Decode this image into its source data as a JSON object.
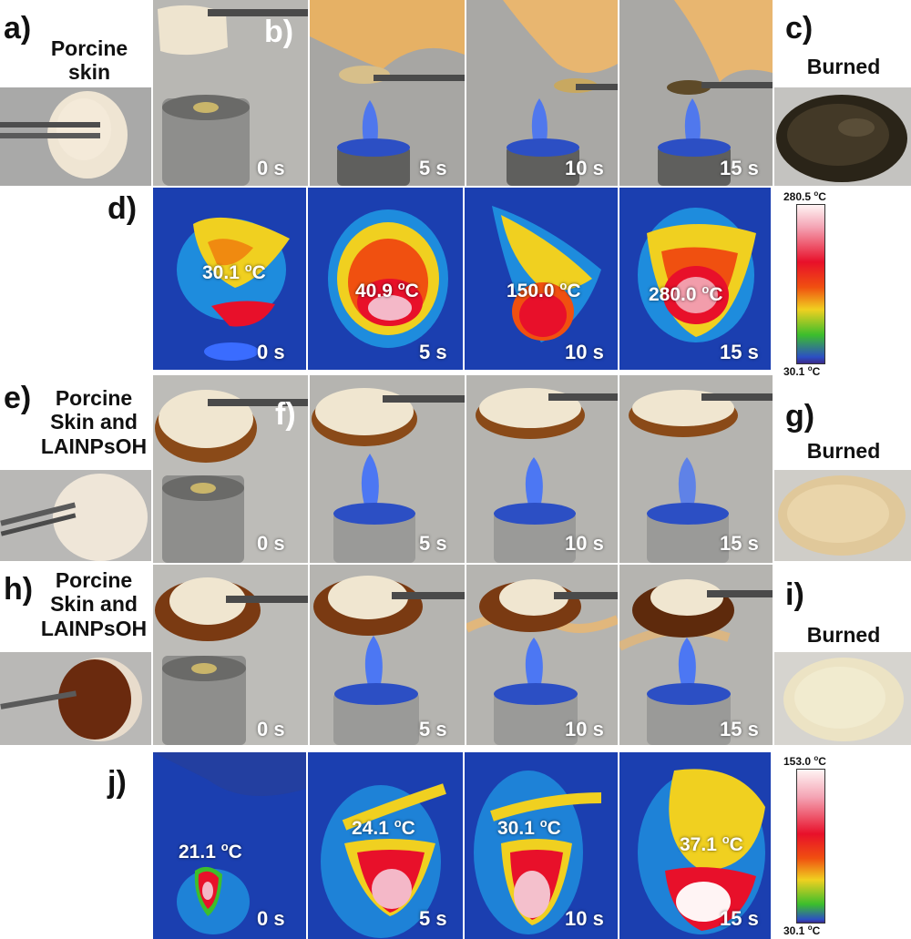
{
  "panels": {
    "a": {
      "letter": "a)",
      "label_line1": "Porcine",
      "label_line2": "skin"
    },
    "b": {
      "letter": "b)"
    },
    "c": {
      "letter": "c)",
      "label": "Burned"
    },
    "d": {
      "letter": "d)"
    },
    "e": {
      "letter": "e)",
      "label_line1": "Porcine",
      "label_line2": "Skin and",
      "label_line3": "LAINPsOH"
    },
    "f": {
      "letter": "f)"
    },
    "g": {
      "letter": "g)",
      "label": "Burned"
    },
    "h": {
      "letter": "h)",
      "label_line1": "Porcine",
      "label_line2": "Skin and",
      "label_line3": "LAINPsOH"
    },
    "i": {
      "letter": "i)",
      "label": "Burned"
    },
    "j": {
      "letter": "j)"
    }
  },
  "times": [
    "0 s",
    "5 s",
    "10 s",
    "15 s"
  ],
  "thermal_d": {
    "temps": [
      "30.1",
      "40.9",
      "150.0",
      "280.0"
    ],
    "unit": "oC",
    "scale_max": "280.5",
    "scale_min": "30.1"
  },
  "thermal_j": {
    "temps": [
      "21.1",
      "24.1",
      "30.1",
      "37.1"
    ],
    "unit": "oC",
    "scale_max": "153.0",
    "scale_min": "30.1"
  },
  "colors": {
    "thermal_background": "#1b3fb0",
    "hot_core": "#e8102a",
    "flame_blue": "#3a6cff",
    "skin_white": "#efe7d6",
    "burned_dark": "#2a2418",
    "gel_amber": "#8a4a18"
  }
}
